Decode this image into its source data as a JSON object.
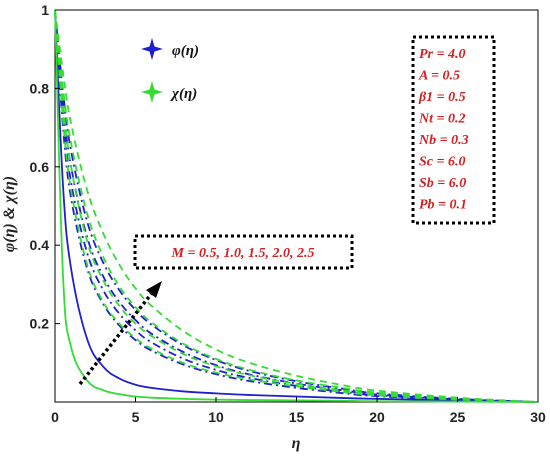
{
  "chart_data": {
    "type": "line",
    "xlabel": "η",
    "ylabel": "φ(η) & χ(η)",
    "xlim": [
      0,
      30
    ],
    "ylim": [
      0,
      1
    ],
    "x_ticks": [
      "0",
      "5",
      "10",
      "15",
      "20",
      "25",
      "30"
    ],
    "y_ticks": [
      "0.2",
      "0.4",
      "0.6",
      "0.8",
      "1"
    ],
    "grid": false,
    "legend_position": "top-left",
    "legend": [
      {
        "label": "φ(η)",
        "color": "#1f1fd0",
        "marker": "star"
      },
      {
        "label": "χ(η)",
        "color": "#33dd33",
        "marker": "star"
      }
    ],
    "parameters": [
      "Pr = 4.0",
      "A = 0.5",
      "β1 = 0.5",
      "Nt = 0.2",
      "Nb = 0.3",
      "Sc = 6.0",
      "Sb = 6.0",
      "Pb = 0.1"
    ],
    "annotation": "M = 0.5, 1.0, 1.5, 2.0, 2.5",
    "x": [
      0,
      0.5,
      1,
      2,
      3,
      4,
      5,
      6,
      8,
      10,
      12,
      15,
      18,
      20,
      25,
      30
    ],
    "series": [
      {
        "group": "φ(η)",
        "M": 0.5,
        "color": "#1f1fd0",
        "dash": "solid",
        "values": [
          1,
          0.55,
          0.34,
          0.16,
          0.09,
          0.06,
          0.044,
          0.036,
          0.027,
          0.022,
          0.018,
          0.014,
          0.01,
          0.008,
          0.004,
          0
        ]
      },
      {
        "group": "φ(η)",
        "M": 1.0,
        "color": "#1f1fd0",
        "dash": "dashdot",
        "values": [
          1,
          0.7,
          0.52,
          0.34,
          0.25,
          0.195,
          0.158,
          0.131,
          0.095,
          0.071,
          0.054,
          0.036,
          0.022,
          0.015,
          0.005,
          0
        ]
      },
      {
        "group": "φ(η)",
        "M": 1.5,
        "color": "#1f1fd0",
        "dash": "dashdot",
        "values": [
          1,
          0.73,
          0.56,
          0.38,
          0.285,
          0.225,
          0.183,
          0.152,
          0.11,
          0.082,
          0.062,
          0.041,
          0.025,
          0.017,
          0.006,
          0
        ]
      },
      {
        "group": "φ(η)",
        "M": 2.0,
        "color": "#1f1fd0",
        "dash": "dashdot",
        "values": [
          1,
          0.76,
          0.6,
          0.42,
          0.32,
          0.255,
          0.209,
          0.174,
          0.127,
          0.094,
          0.071,
          0.047,
          0.029,
          0.019,
          0.007,
          0
        ]
      },
      {
        "group": "φ(η)",
        "M": 2.5,
        "color": "#1f1fd0",
        "dash": "dashdot",
        "values": [
          1,
          0.79,
          0.64,
          0.46,
          0.355,
          0.285,
          0.235,
          0.197,
          0.144,
          0.107,
          0.08,
          0.053,
          0.033,
          0.022,
          0.008,
          0
        ]
      },
      {
        "group": "χ(η)",
        "M": 0.5,
        "color": "#33dd33",
        "dash": "solid",
        "values": [
          1,
          0.32,
          0.14,
          0.055,
          0.03,
          0.02,
          0.014,
          0.011,
          0.008,
          0.006,
          0.005,
          0.004,
          0.003,
          0.002,
          0.001,
          0
        ]
      },
      {
        "group": "χ(η)",
        "M": 1.0,
        "color": "#33dd33",
        "dash": "dash",
        "values": [
          1,
          0.72,
          0.54,
          0.35,
          0.255,
          0.2,
          0.163,
          0.136,
          0.099,
          0.075,
          0.058,
          0.04,
          0.025,
          0.017,
          0.006,
          0
        ]
      },
      {
        "group": "χ(η)",
        "M": 1.5,
        "color": "#33dd33",
        "dash": "dash",
        "values": [
          1,
          0.76,
          0.6,
          0.41,
          0.31,
          0.245,
          0.2,
          0.168,
          0.122,
          0.091,
          0.069,
          0.046,
          0.029,
          0.02,
          0.007,
          0
        ]
      },
      {
        "group": "χ(η)",
        "M": 2.0,
        "color": "#33dd33",
        "dash": "dash",
        "values": [
          1,
          0.8,
          0.66,
          0.48,
          0.37,
          0.295,
          0.242,
          0.203,
          0.148,
          0.11,
          0.083,
          0.055,
          0.035,
          0.024,
          0.009,
          0
        ]
      },
      {
        "group": "χ(η)",
        "M": 2.5,
        "color": "#33dd33",
        "dash": "dash",
        "values": [
          1,
          0.84,
          0.71,
          0.54,
          0.43,
          0.35,
          0.29,
          0.245,
          0.18,
          0.134,
          0.101,
          0.067,
          0.042,
          0.029,
          0.011,
          0
        ]
      }
    ]
  }
}
